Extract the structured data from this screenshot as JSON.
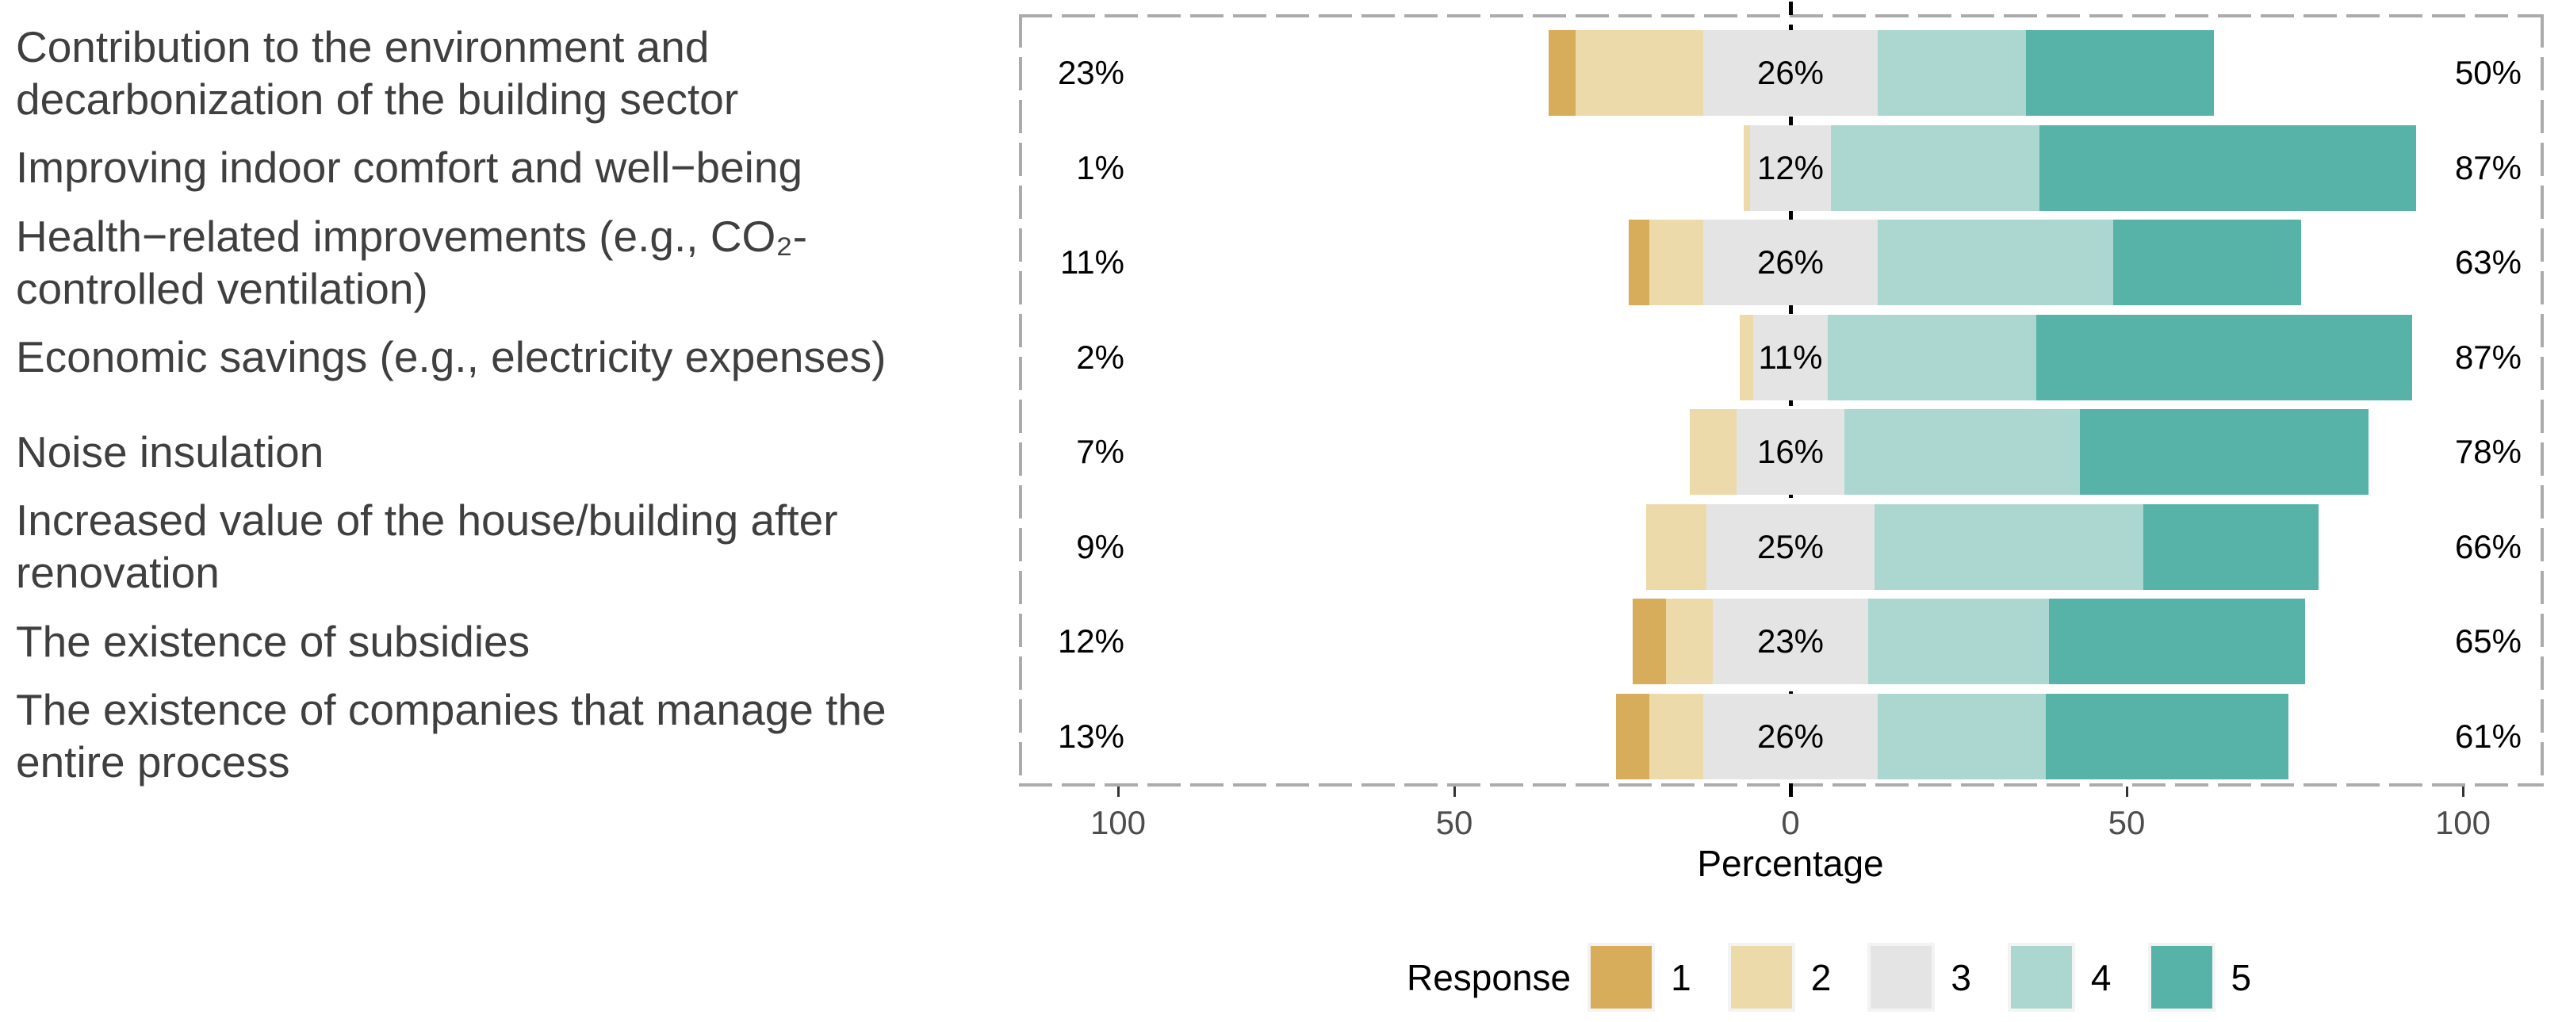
{
  "chart_data": {
    "type": "bar",
    "subtype": "diverging-likert-stacked",
    "orientation": "horizontal",
    "categories": [
      "Contribution to the environment and decarbonization of the building sector",
      "Improving indoor comfort and well−being",
      "Health−related improvements (e.g., CO₂-controlled ventilation)",
      "Economic savings (e.g., electricity expenses)",
      "Noise insulation",
      "Increased value of the house/building after renovation",
      "The existence of subsidies",
      "The existence of companies that manage the entire process"
    ],
    "series": [
      {
        "name": "1",
        "color": "#D7AC5A",
        "values": [
          4,
          0,
          3,
          0,
          0,
          0,
          5,
          5
        ]
      },
      {
        "name": "2",
        "color": "#ECDAAB",
        "values": [
          19,
          1,
          8,
          2,
          7,
          9,
          7,
          8
        ]
      },
      {
        "name": "3",
        "color": "#E4E4E4",
        "values": [
          26,
          12,
          26,
          11,
          16,
          25,
          23,
          26
        ]
      },
      {
        "name": "4",
        "color": "#ACD7D0",
        "values": [
          22,
          31,
          35,
          31,
          35,
          40,
          27,
          25
        ]
      },
      {
        "name": "5",
        "color": "#57B2A8",
        "values": [
          28,
          56,
          28,
          56,
          43,
          26,
          38,
          36
        ]
      }
    ],
    "negative_labels": [
      "23%",
      "1%",
      "11%",
      "2%",
      "7%",
      "9%",
      "12%",
      "13%"
    ],
    "neutral_labels": [
      "26%",
      "12%",
      "26%",
      "11%",
      "16%",
      "25%",
      "23%",
      "26%"
    ],
    "positive_labels": [
      "50%",
      "87%",
      "63%",
      "87%",
      "78%",
      "66%",
      "65%",
      "61%"
    ],
    "xlabel": "Percentage",
    "x_ticks": [
      {
        "value": -100,
        "label": "100"
      },
      {
        "value": -50,
        "label": "50"
      },
      {
        "value": 0,
        "label": "0"
      },
      {
        "value": 50,
        "label": "50"
      },
      {
        "value": 100,
        "label": "100"
      }
    ],
    "x_range": [
      -114.7,
      112.0
    ],
    "neutral_centered_on_zero": true,
    "grid": false,
    "zero_line": {
      "style": "dashed",
      "color": "#000000"
    },
    "panel_border": {
      "style": "dashed",
      "color": "#ababab"
    },
    "legend": {
      "position": "bottom",
      "title": "Response",
      "entries": [
        {
          "label": "1",
          "color": "#D7AC5A"
        },
        {
          "label": "2",
          "color": "#ECDAAB"
        },
        {
          "label": "3",
          "color": "#E4E4E4"
        },
        {
          "label": "4",
          "color": "#ACD7D0"
        },
        {
          "label": "5",
          "color": "#57B2A8"
        }
      ]
    }
  }
}
